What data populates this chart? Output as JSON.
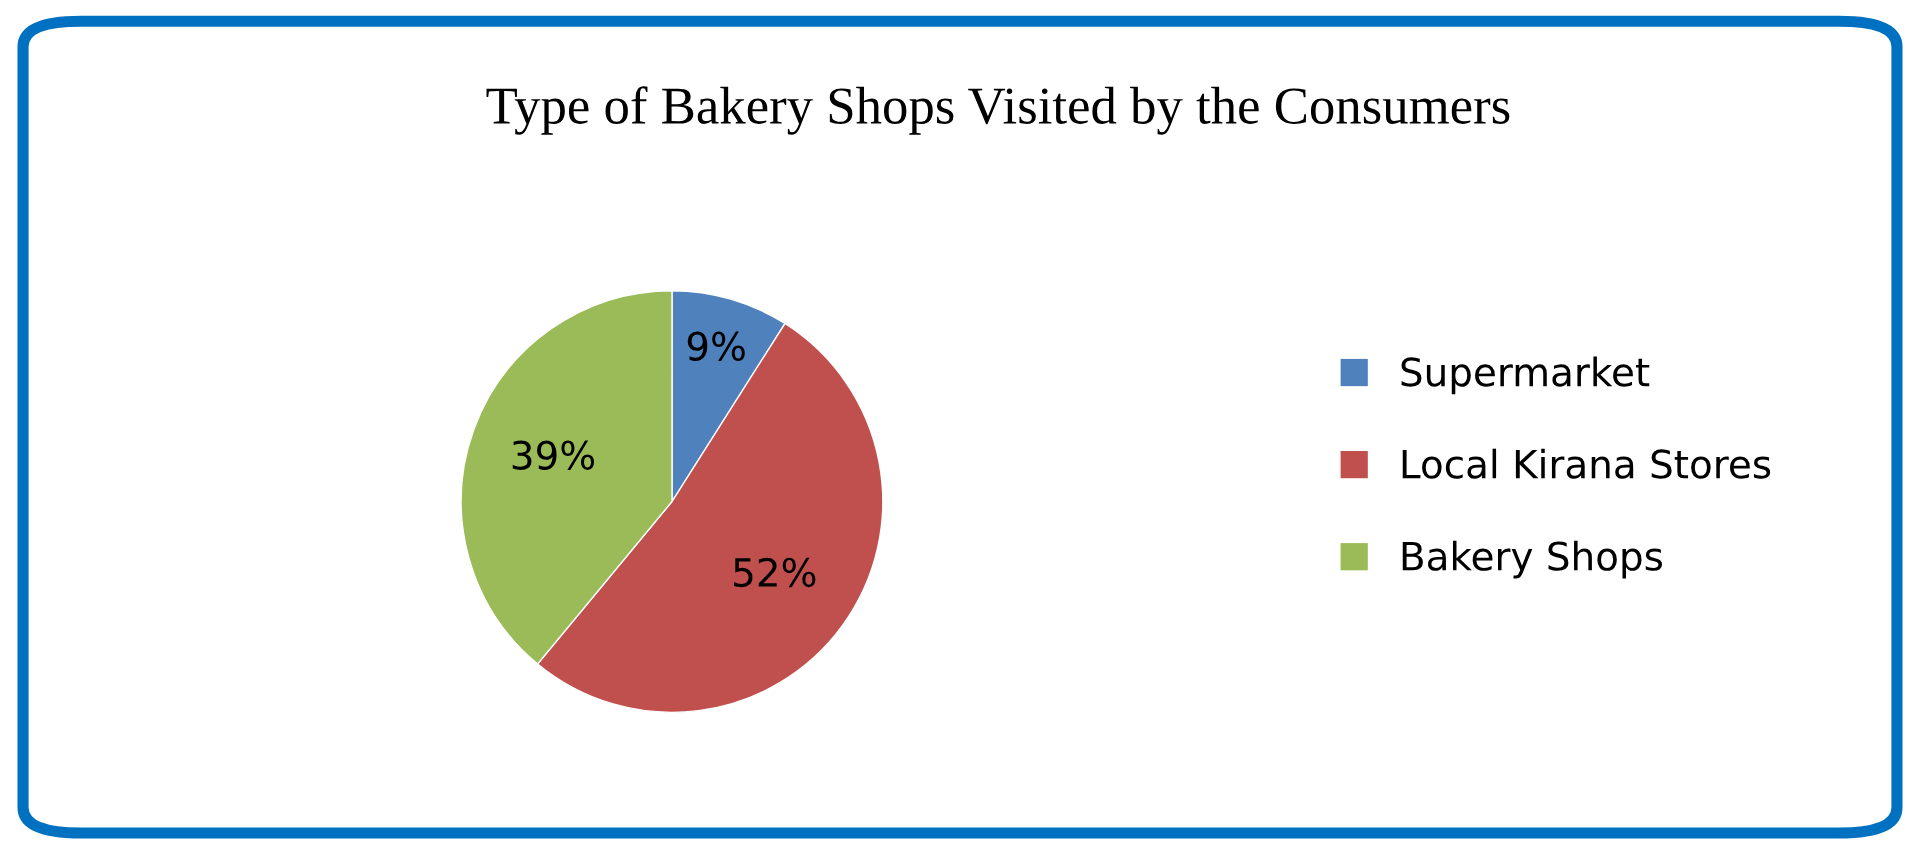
{
  "chart_data": {
    "type": "pie",
    "title": "Type of Bakery Shops Visited by the Consumers",
    "categories": [
      "Supermarket",
      "Local Kirana Stores",
      "Bakery Shops"
    ],
    "values": [
      9,
      52,
      39
    ],
    "colors": [
      "#4f81bd",
      "#c0504d",
      "#9bbb59"
    ],
    "value_labels": [
      "9%",
      "52%",
      "39%"
    ],
    "legend": "right"
  }
}
